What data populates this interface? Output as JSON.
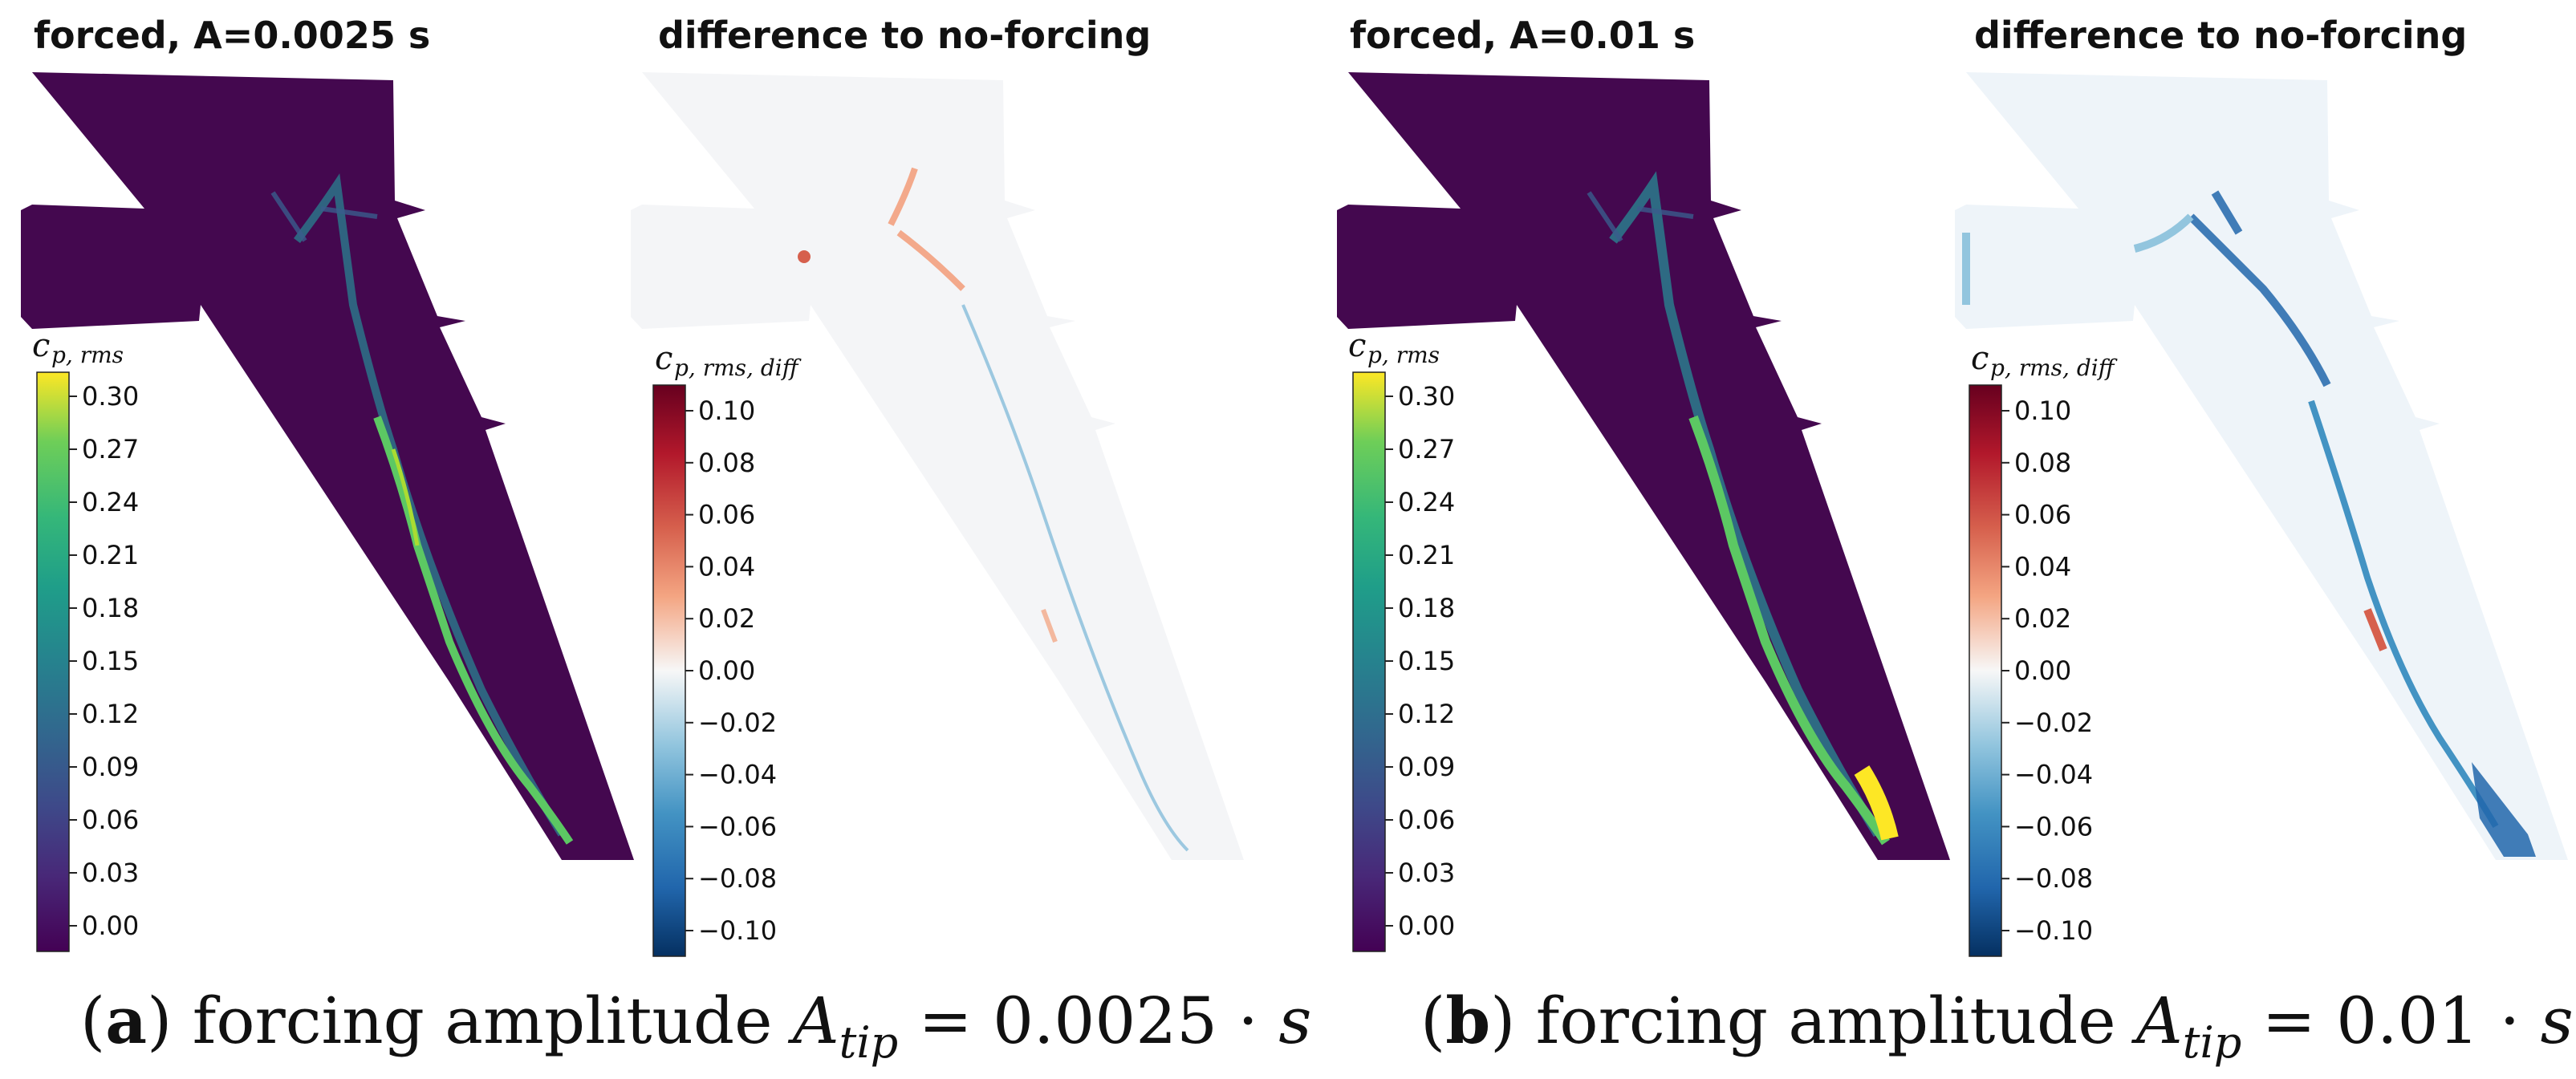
{
  "panels": [
    {
      "caption_letter": "a",
      "caption_text": "forcing amplitude ",
      "caption_symbol": "A",
      "caption_subscript": "tip",
      "caption_value": " = 0.0025 · ",
      "caption_var": "s",
      "rms_title": "forced, A=0.0025 s",
      "diff_title": "difference to no-forcing"
    },
    {
      "caption_letter": "b",
      "caption_text": "forcing amplitude ",
      "caption_symbol": "A",
      "caption_subscript": "tip",
      "caption_value": " = 0.01 · ",
      "caption_var": "s",
      "rms_title": "forced, A=0.01 s",
      "diff_title": "difference to no-forcing"
    }
  ],
  "rms_colorbar": {
    "label_main": "c",
    "label_sub": "p, rms",
    "ticks": [
      "0.30",
      "0.27",
      "0.24",
      "0.21",
      "0.18",
      "0.15",
      "0.12",
      "0.09",
      "0.06",
      "0.03",
      "0.00"
    ],
    "colormap": "viridis"
  },
  "diff_colorbar": {
    "label_main": "c",
    "label_sub": "p, rms, diff",
    "ticks": [
      "0.10",
      "0.08",
      "0.06",
      "0.04",
      "0.02",
      "0.00",
      "−0.02",
      "−0.04",
      "−0.06",
      "−0.08",
      "−0.10"
    ],
    "colormap": "RdBu_r"
  }
}
